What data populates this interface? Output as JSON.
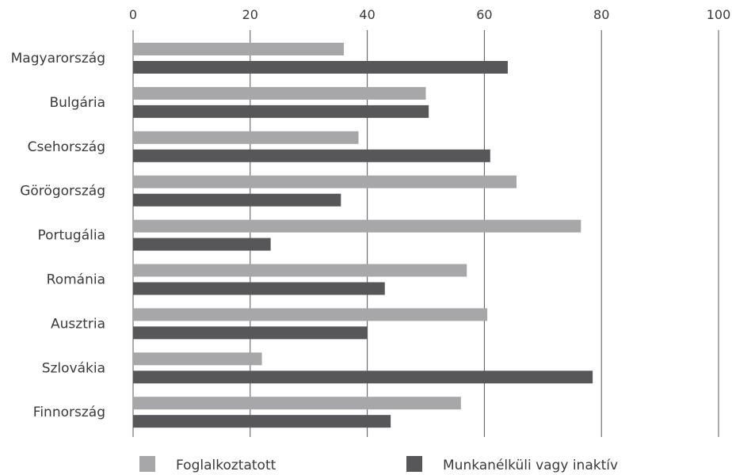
{
  "chart_data": {
    "type": "bar",
    "orientation": "horizontal",
    "categories": [
      "Magyarország",
      "Bulgária",
      "Csehország",
      "Görögország",
      "Portugália",
      "Románia",
      "Ausztria",
      "Szlovákia",
      "Finnország"
    ],
    "series": [
      {
        "name": "Foglalkoztatott",
        "color": "#a7a7a9",
        "values": [
          36,
          50,
          38.5,
          65.5,
          76.5,
          57,
          60.5,
          22,
          56
        ]
      },
      {
        "name": "Munkanélküli vagy inaktív",
        "color": "#57575a",
        "values": [
          64,
          50.5,
          61,
          35.5,
          23.5,
          43,
          40,
          78.5,
          44
        ]
      }
    ],
    "xlim": [
      0,
      100
    ],
    "xticks": [
      "0",
      "20",
      "40",
      "60",
      "80",
      "100"
    ],
    "tick_values": [
      0,
      20,
      40,
      60,
      80,
      100
    ],
    "grid": "vertical",
    "tick_position": "top",
    "legend_position": "bottom"
  }
}
